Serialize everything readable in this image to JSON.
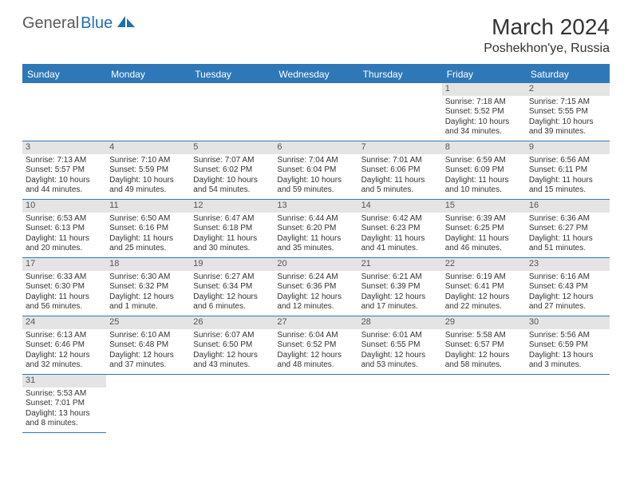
{
  "brand": {
    "general": "General",
    "blue": "Blue"
  },
  "title": "March 2024",
  "location": "Poshekhon'ye, Russia",
  "colors": {
    "accent": "#2f78b7",
    "dayBar": "#e4e4e4",
    "text": "#333333"
  },
  "dow": [
    "Sunday",
    "Monday",
    "Tuesday",
    "Wednesday",
    "Thursday",
    "Friday",
    "Saturday"
  ],
  "weeks": [
    [
      {
        "n": "",
        "sr": "",
        "ss": "",
        "dl": ""
      },
      {
        "n": "",
        "sr": "",
        "ss": "",
        "dl": ""
      },
      {
        "n": "",
        "sr": "",
        "ss": "",
        "dl": ""
      },
      {
        "n": "",
        "sr": "",
        "ss": "",
        "dl": ""
      },
      {
        "n": "",
        "sr": "",
        "ss": "",
        "dl": ""
      },
      {
        "n": "1",
        "sr": "Sunrise: 7:18 AM",
        "ss": "Sunset: 5:52 PM",
        "dl": "Daylight: 10 hours and 34 minutes."
      },
      {
        "n": "2",
        "sr": "Sunrise: 7:15 AM",
        "ss": "Sunset: 5:55 PM",
        "dl": "Daylight: 10 hours and 39 minutes."
      }
    ],
    [
      {
        "n": "3",
        "sr": "Sunrise: 7:13 AM",
        "ss": "Sunset: 5:57 PM",
        "dl": "Daylight: 10 hours and 44 minutes."
      },
      {
        "n": "4",
        "sr": "Sunrise: 7:10 AM",
        "ss": "Sunset: 5:59 PM",
        "dl": "Daylight: 10 hours and 49 minutes."
      },
      {
        "n": "5",
        "sr": "Sunrise: 7:07 AM",
        "ss": "Sunset: 6:02 PM",
        "dl": "Daylight: 10 hours and 54 minutes."
      },
      {
        "n": "6",
        "sr": "Sunrise: 7:04 AM",
        "ss": "Sunset: 6:04 PM",
        "dl": "Daylight: 10 hours and 59 minutes."
      },
      {
        "n": "7",
        "sr": "Sunrise: 7:01 AM",
        "ss": "Sunset: 6:06 PM",
        "dl": "Daylight: 11 hours and 5 minutes."
      },
      {
        "n": "8",
        "sr": "Sunrise: 6:59 AM",
        "ss": "Sunset: 6:09 PM",
        "dl": "Daylight: 11 hours and 10 minutes."
      },
      {
        "n": "9",
        "sr": "Sunrise: 6:56 AM",
        "ss": "Sunset: 6:11 PM",
        "dl": "Daylight: 11 hours and 15 minutes."
      }
    ],
    [
      {
        "n": "10",
        "sr": "Sunrise: 6:53 AM",
        "ss": "Sunset: 6:13 PM",
        "dl": "Daylight: 11 hours and 20 minutes."
      },
      {
        "n": "11",
        "sr": "Sunrise: 6:50 AM",
        "ss": "Sunset: 6:16 PM",
        "dl": "Daylight: 11 hours and 25 minutes."
      },
      {
        "n": "12",
        "sr": "Sunrise: 6:47 AM",
        "ss": "Sunset: 6:18 PM",
        "dl": "Daylight: 11 hours and 30 minutes."
      },
      {
        "n": "13",
        "sr": "Sunrise: 6:44 AM",
        "ss": "Sunset: 6:20 PM",
        "dl": "Daylight: 11 hours and 35 minutes."
      },
      {
        "n": "14",
        "sr": "Sunrise: 6:42 AM",
        "ss": "Sunset: 6:23 PM",
        "dl": "Daylight: 11 hours and 41 minutes."
      },
      {
        "n": "15",
        "sr": "Sunrise: 6:39 AM",
        "ss": "Sunset: 6:25 PM",
        "dl": "Daylight: 11 hours and 46 minutes."
      },
      {
        "n": "16",
        "sr": "Sunrise: 6:36 AM",
        "ss": "Sunset: 6:27 PM",
        "dl": "Daylight: 11 hours and 51 minutes."
      }
    ],
    [
      {
        "n": "17",
        "sr": "Sunrise: 6:33 AM",
        "ss": "Sunset: 6:30 PM",
        "dl": "Daylight: 11 hours and 56 minutes."
      },
      {
        "n": "18",
        "sr": "Sunrise: 6:30 AM",
        "ss": "Sunset: 6:32 PM",
        "dl": "Daylight: 12 hours and 1 minute."
      },
      {
        "n": "19",
        "sr": "Sunrise: 6:27 AM",
        "ss": "Sunset: 6:34 PM",
        "dl": "Daylight: 12 hours and 6 minutes."
      },
      {
        "n": "20",
        "sr": "Sunrise: 6:24 AM",
        "ss": "Sunset: 6:36 PM",
        "dl": "Daylight: 12 hours and 12 minutes."
      },
      {
        "n": "21",
        "sr": "Sunrise: 6:21 AM",
        "ss": "Sunset: 6:39 PM",
        "dl": "Daylight: 12 hours and 17 minutes."
      },
      {
        "n": "22",
        "sr": "Sunrise: 6:19 AM",
        "ss": "Sunset: 6:41 PM",
        "dl": "Daylight: 12 hours and 22 minutes."
      },
      {
        "n": "23",
        "sr": "Sunrise: 6:16 AM",
        "ss": "Sunset: 6:43 PM",
        "dl": "Daylight: 12 hours and 27 minutes."
      }
    ],
    [
      {
        "n": "24",
        "sr": "Sunrise: 6:13 AM",
        "ss": "Sunset: 6:46 PM",
        "dl": "Daylight: 12 hours and 32 minutes."
      },
      {
        "n": "25",
        "sr": "Sunrise: 6:10 AM",
        "ss": "Sunset: 6:48 PM",
        "dl": "Daylight: 12 hours and 37 minutes."
      },
      {
        "n": "26",
        "sr": "Sunrise: 6:07 AM",
        "ss": "Sunset: 6:50 PM",
        "dl": "Daylight: 12 hours and 43 minutes."
      },
      {
        "n": "27",
        "sr": "Sunrise: 6:04 AM",
        "ss": "Sunset: 6:52 PM",
        "dl": "Daylight: 12 hours and 48 minutes."
      },
      {
        "n": "28",
        "sr": "Sunrise: 6:01 AM",
        "ss": "Sunset: 6:55 PM",
        "dl": "Daylight: 12 hours and 53 minutes."
      },
      {
        "n": "29",
        "sr": "Sunrise: 5:58 AM",
        "ss": "Sunset: 6:57 PM",
        "dl": "Daylight: 12 hours and 58 minutes."
      },
      {
        "n": "30",
        "sr": "Sunrise: 5:56 AM",
        "ss": "Sunset: 6:59 PM",
        "dl": "Daylight: 13 hours and 3 minutes."
      }
    ],
    [
      {
        "n": "31",
        "sr": "Sunrise: 5:53 AM",
        "ss": "Sunset: 7:01 PM",
        "dl": "Daylight: 13 hours and 8 minutes."
      },
      {
        "n": "",
        "sr": "",
        "ss": "",
        "dl": ""
      },
      {
        "n": "",
        "sr": "",
        "ss": "",
        "dl": ""
      },
      {
        "n": "",
        "sr": "",
        "ss": "",
        "dl": ""
      },
      {
        "n": "",
        "sr": "",
        "ss": "",
        "dl": ""
      },
      {
        "n": "",
        "sr": "",
        "ss": "",
        "dl": ""
      },
      {
        "n": "",
        "sr": "",
        "ss": "",
        "dl": ""
      }
    ]
  ]
}
